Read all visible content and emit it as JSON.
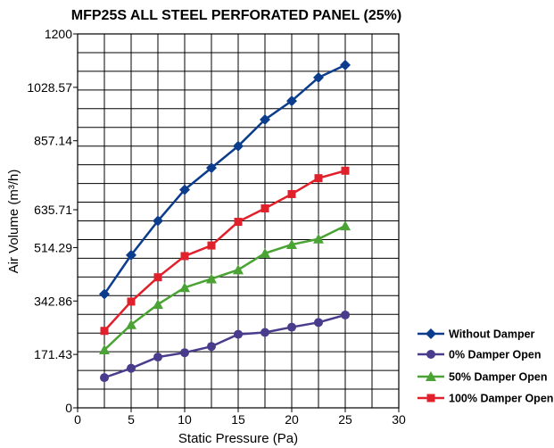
{
  "chart_data": {
    "type": "line",
    "title": "MFP25S ALL STEEL PERFORATED PANEL (25%)",
    "xlabel": "Static Pressure (Pa)",
    "ylabel": "Air Volume (m³/h)",
    "xlim": [
      0,
      30
    ],
    "ylim": [
      0,
      1200
    ],
    "xticks": [
      0,
      5,
      10,
      15,
      20,
      25,
      30
    ],
    "yticks": [
      0,
      171.43,
      342.86,
      514.29,
      635.71,
      857.14,
      1028.57,
      1200
    ],
    "ytick_labels": [
      "0",
      "171.43",
      "342.86",
      "514.29",
      "635.71",
      "857.14",
      "1028.57",
      "1200"
    ],
    "grid": true,
    "legend_position": "bottom-right outside",
    "x": [
      2.5,
      5,
      7.5,
      10,
      12.5,
      15,
      17.5,
      20,
      22.5,
      25
    ],
    "series": [
      {
        "name": "Without Damper",
        "color": "#0b3d8c",
        "marker": "diamond",
        "values": [
          365,
          490,
          600,
          700,
          770,
          840,
          925,
          985,
          1060,
          1100
        ]
      },
      {
        "name": "0% Damper Open",
        "color": "#4a3c8c",
        "marker": "circle",
        "values": [
          97,
          127,
          163,
          177,
          197,
          236,
          242,
          259,
          274,
          298
        ]
      },
      {
        "name": "50% Damper Open",
        "color": "#4aa334",
        "marker": "triangle",
        "values": [
          186,
          267,
          332,
          386,
          414,
          443,
          496,
          524,
          542,
          584
        ]
      },
      {
        "name": "100% Damper Open",
        "color": "#e0202a",
        "marker": "square",
        "values": [
          247,
          341,
          419,
          487,
          521,
          597,
          640,
          686,
          737,
          761
        ]
      }
    ]
  }
}
